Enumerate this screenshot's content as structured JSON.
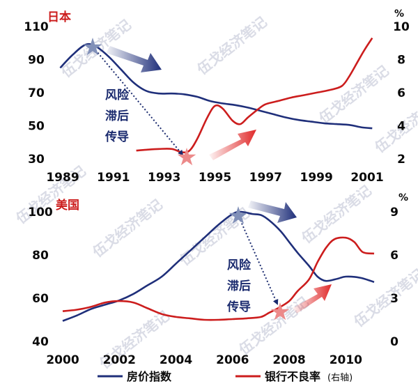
{
  "watermark_text": "伍戈经济笔记",
  "legend": {
    "house": {
      "label": "房价指数",
      "color": "#1f2f7a"
    },
    "npl": {
      "label": "银行不良率",
      "suffix": "(右轴)",
      "color": "#cc1d1d"
    }
  },
  "chart_data": [
    {
      "type": "line",
      "country": "日本",
      "right_unit": "%",
      "annotation": [
        "风险",
        "滞后",
        "传导"
      ],
      "x_ticks": [
        "1989",
        "1991",
        "1993",
        "1995",
        "1997",
        "1999",
        "2001"
      ],
      "xlim": [
        1989,
        2001
      ],
      "y_left_ticks": [
        110,
        90,
        70,
        50,
        30
      ],
      "y_left_lim": [
        30,
        110
      ],
      "y_right_ticks": [
        10,
        8,
        6,
        4,
        2
      ],
      "y_right_lim": [
        2,
        10
      ],
      "series": [
        {
          "axis": "left",
          "x": [
            1988.9,
            1989.4,
            1989.9,
            1990.3,
            1990.8,
            1991.3,
            1991.8,
            1992.3,
            1992.8,
            1993.3,
            1993.8,
            1994.3,
            1994.8,
            1995.3,
            1995.8,
            1996.3,
            1996.8,
            1997.3,
            1997.8,
            1998.3,
            1998.8,
            1999.3,
            1999.8,
            2000.3,
            2000.8,
            2001.2
          ],
          "y": [
            85,
            93,
            99,
            98,
            92,
            84,
            76,
            71,
            69.5,
            69.5,
            69,
            67.5,
            65,
            63.5,
            62.5,
            61,
            59,
            57,
            55,
            53.5,
            52.5,
            51.5,
            51,
            50.5,
            49,
            48.5
          ]
        },
        {
          "axis": "right",
          "x": [
            1991.9,
            1992.3,
            1992.8,
            1993.3,
            1993.7,
            1994.0,
            1994.3,
            1994.7,
            1995.0,
            1995.3,
            1995.7,
            1996.0,
            1996.3,
            1996.7,
            1997.0,
            1997.5,
            1998.0,
            1998.5,
            1999.0,
            1999.5,
            2000.0,
            2000.3,
            2000.6,
            2000.9,
            2001.2
          ],
          "y": [
            2.5,
            2.55,
            2.6,
            2.6,
            2.4,
            2.5,
            3.2,
            4.5,
            5.2,
            5.05,
            4.3,
            4.1,
            4.5,
            5.0,
            5.3,
            5.5,
            5.7,
            5.85,
            6.0,
            6.15,
            6.4,
            7.0,
            7.8,
            8.6,
            9.3
          ]
        }
      ]
    },
    {
      "type": "line",
      "country": "美国",
      "right_unit": "%",
      "annotation": [
        "风险",
        "滞后",
        "传导"
      ],
      "x_ticks": [
        "2000",
        "2002",
        "2004",
        "2006",
        "2008",
        "2010"
      ],
      "xlim": [
        2000,
        2011
      ],
      "y_left_ticks": [
        100,
        80,
        60,
        40
      ],
      "y_left_lim": [
        40,
        100
      ],
      "y_right_ticks": [
        9,
        6,
        3,
        0
      ],
      "y_right_lim": [
        0,
        9
      ],
      "series": [
        {
          "axis": "left",
          "x": [
            2000.0,
            2000.5,
            2001.0,
            2001.5,
            2002.0,
            2002.5,
            2003.0,
            2003.5,
            2004.0,
            2004.5,
            2005.0,
            2005.5,
            2006.0,
            2006.3,
            2006.7,
            2007.0,
            2007.3,
            2007.7,
            2008.0,
            2008.3,
            2008.7,
            2009.0,
            2009.3,
            2009.7,
            2010.0,
            2010.5,
            2011.0
          ],
          "y": [
            49.5,
            52,
            55,
            57,
            59,
            62,
            66,
            70,
            76,
            82,
            88,
            94,
            99,
            100,
            99,
            98.5,
            96,
            91,
            86,
            81,
            75,
            70,
            68,
            69,
            70,
            69.5,
            67.5
          ]
        },
        {
          "axis": "right",
          "x": [
            2000.0,
            2000.5,
            2001.0,
            2001.5,
            2002.0,
            2002.5,
            2003.0,
            2003.5,
            2004.0,
            2004.5,
            2005.0,
            2005.5,
            2006.0,
            2006.5,
            2007.0,
            2007.3,
            2007.6,
            2008.0,
            2008.3,
            2008.7,
            2009.0,
            2009.3,
            2009.6,
            2010.0,
            2010.3,
            2010.6,
            2011.0
          ],
          "y": [
            2.1,
            2.2,
            2.4,
            2.7,
            2.8,
            2.7,
            2.3,
            1.9,
            1.7,
            1.6,
            1.5,
            1.5,
            1.55,
            1.6,
            1.7,
            2.0,
            2.3,
            2.8,
            3.5,
            4.3,
            5.5,
            6.5,
            7.1,
            7.2,
            6.9,
            6.2,
            6.1
          ]
        }
      ]
    }
  ]
}
